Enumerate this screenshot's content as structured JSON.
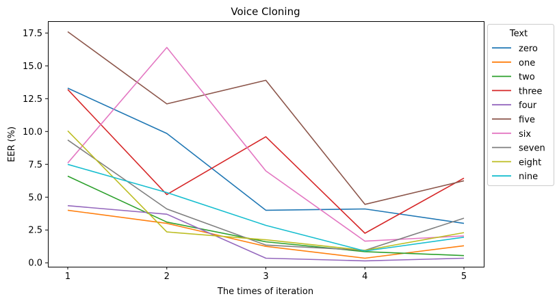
{
  "chart_data": {
    "type": "line",
    "title": "Voice Cloning",
    "xlabel": "The times of iteration",
    "ylabel": "EER (%)",
    "x": [
      1,
      2,
      3,
      4,
      5
    ],
    "xticks": [
      "1",
      "2",
      "3",
      "4",
      "5"
    ],
    "yticks": [
      "0.0",
      "2.5",
      "5.0",
      "7.5",
      "10.0",
      "12.5",
      "15.0",
      "17.5"
    ],
    "ylim": [
      -0.3,
      18.4
    ],
    "grid": false,
    "legend": {
      "title": "Text",
      "placement": "outside-top-right"
    },
    "series": [
      {
        "name": "zero",
        "color": "#1f77b4",
        "values": [
          13.3,
          9.85,
          4.0,
          4.1,
          3.0
        ]
      },
      {
        "name": "one",
        "color": "#ff7f0e",
        "values": [
          4.0,
          3.0,
          1.25,
          0.35,
          1.3
        ]
      },
      {
        "name": "two",
        "color": "#2ca02c",
        "values": [
          6.6,
          3.1,
          1.6,
          0.85,
          0.55
        ]
      },
      {
        "name": "three",
        "color": "#d62728",
        "values": [
          13.2,
          5.2,
          9.6,
          2.25,
          6.45
        ]
      },
      {
        "name": "four",
        "color": "#9467bd",
        "values": [
          4.35,
          3.7,
          0.35,
          0.15,
          0.35
        ]
      },
      {
        "name": "five",
        "color": "#8c564b",
        "values": [
          17.6,
          12.1,
          13.9,
          4.45,
          6.25
        ]
      },
      {
        "name": "six",
        "color": "#e377c2",
        "values": [
          7.6,
          16.4,
          7.0,
          1.65,
          2.05
        ]
      },
      {
        "name": "seven",
        "color": "#7f7f7f",
        "values": [
          9.35,
          4.1,
          1.35,
          0.95,
          3.4
        ]
      },
      {
        "name": "eight",
        "color": "#bcbd22",
        "values": [
          10.05,
          2.35,
          1.75,
          0.95,
          2.3
        ]
      },
      {
        "name": "nine",
        "color": "#17becf",
        "values": [
          7.5,
          5.35,
          2.85,
          0.9,
          1.95
        ]
      }
    ]
  }
}
